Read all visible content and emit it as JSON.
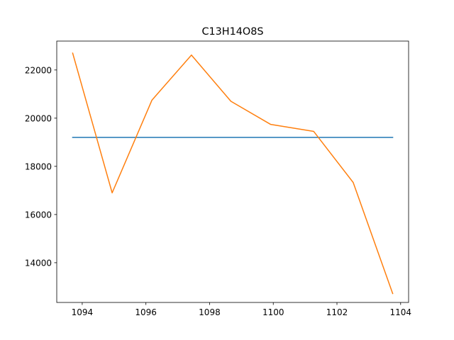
{
  "chart_data": {
    "type": "line",
    "title": "C13H14O8S",
    "xlabel": "",
    "ylabel": "",
    "xlim": [
      1093.2,
      1104.25
    ],
    "ylim": [
      12350,
      23200
    ],
    "xticks": [
      1094,
      1096,
      1098,
      1100,
      1102,
      1104
    ],
    "yticks": [
      14000,
      16000,
      18000,
      20000,
      22000
    ],
    "grid": false,
    "legend": "none",
    "series": [
      {
        "color": "#1f77b4",
        "x": [
          1093.7,
          1103.75
        ],
        "values": [
          19200,
          19200
        ]
      },
      {
        "color": "#ff7f0e",
        "x": [
          1093.7,
          1094.94,
          1096.19,
          1097.43,
          1098.67,
          1099.92,
          1101.27,
          1102.51,
          1103.75
        ],
        "values": [
          22700,
          16900,
          20750,
          22620,
          20700,
          19740,
          19450,
          17330,
          12720
        ]
      }
    ]
  }
}
